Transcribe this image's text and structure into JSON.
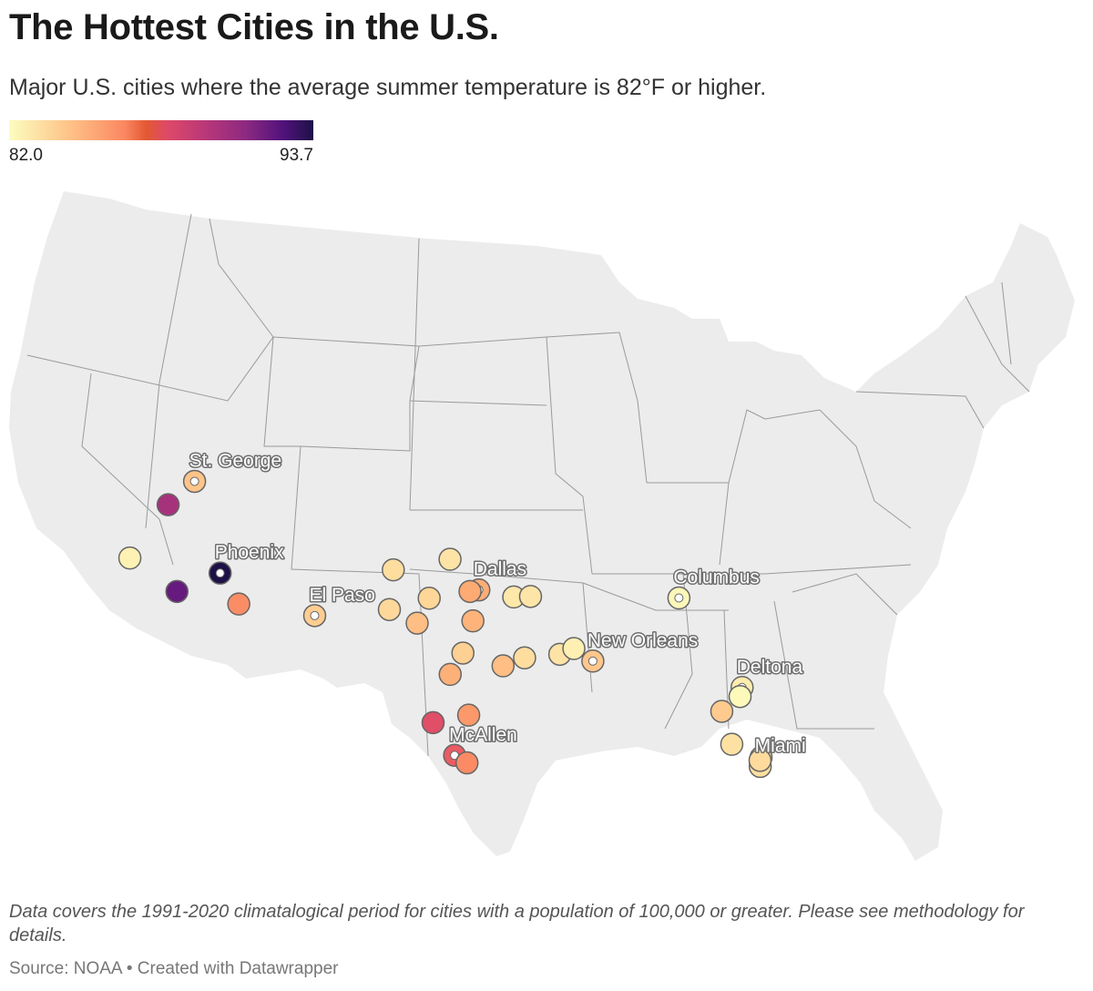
{
  "title": "The Hottest Cities in the U.S.",
  "subtitle": "Major U.S. cities where the average summer temperature is 82°F or higher.",
  "legend": {
    "min_label": "82.0",
    "max_label": "93.7",
    "min": 82.0,
    "max": 93.7
  },
  "note": "Data covers the 1991-2020 climatalogical period for cities with a population of 100,000 or greater. Please see methodology for details.",
  "source": "Source: NOAA • Created with Datawrapper",
  "colors": {
    "land": "#ececec",
    "border": "#9a9a9a",
    "marker_stroke": "#666666"
  },
  "cities": [
    {
      "label": "St. George",
      "lat": 37.1,
      "lon": -113.58,
      "temp": 84.4,
      "highlight": true
    },
    {
      "label": "Phoenix",
      "lat": 33.45,
      "lon": -112.07,
      "temp": 93.7,
      "highlight": true
    },
    {
      "label": "El Paso",
      "lat": 31.76,
      "lon": -106.49,
      "temp": 84.1,
      "highlight": true
    },
    {
      "label": "Dallas",
      "lat": 32.78,
      "lon": -96.8,
      "temp": 85.2,
      "highlight": true
    },
    {
      "label": "Columbus",
      "lat": 32.46,
      "lon": -84.99,
      "temp": 82.3,
      "highlight": true
    },
    {
      "label": "New Orleans",
      "lat": 29.95,
      "lon": -90.07,
      "temp": 84.3,
      "highlight": true
    },
    {
      "label": "Deltona",
      "lat": 28.9,
      "lon": -81.26,
      "temp": 82.8,
      "highlight": true
    },
    {
      "label": "Miami",
      "lat": 25.76,
      "lon": -80.19,
      "temp": 83.4,
      "highlight": true
    },
    {
      "label": "McAllen",
      "lat": 26.2,
      "lon": -98.23,
      "temp": 87.9,
      "highlight": true
    },
    {
      "label": "",
      "lat": 34.05,
      "lon": -117.4,
      "temp": 82.5,
      "highlight": false
    },
    {
      "label": "",
      "lat": 36.17,
      "lon": -115.14,
      "temp": 90.5,
      "highlight": false
    },
    {
      "label": "",
      "lat": 32.72,
      "lon": -114.62,
      "temp": 92.1,
      "highlight": false
    },
    {
      "label": "",
      "lat": 32.22,
      "lon": -110.97,
      "temp": 86.3,
      "highlight": false
    },
    {
      "label": "",
      "lat": 33.58,
      "lon": -101.85,
      "temp": 83.5,
      "highlight": false
    },
    {
      "label": "",
      "lat": 32.0,
      "lon": -102.08,
      "temp": 83.7,
      "highlight": false
    },
    {
      "label": "",
      "lat": 31.46,
      "lon": -100.44,
      "temp": 84.6,
      "highlight": false
    },
    {
      "label": "",
      "lat": 32.45,
      "lon": -99.73,
      "temp": 83.8,
      "highlight": false
    },
    {
      "label": "",
      "lat": 34.0,
      "lon": -98.5,
      "temp": 83.2,
      "highlight": false
    },
    {
      "label": "",
      "lat": 32.72,
      "lon": -97.32,
      "temp": 85.3,
      "highlight": false
    },
    {
      "label": "",
      "lat": 31.55,
      "lon": -97.15,
      "temp": 85.0,
      "highlight": false
    },
    {
      "label": "",
      "lat": 30.27,
      "lon": -97.74,
      "temp": 84.0,
      "highlight": false
    },
    {
      "label": "",
      "lat": 29.42,
      "lon": -98.49,
      "temp": 85.1,
      "highlight": false
    },
    {
      "label": "",
      "lat": 27.8,
      "lon": -97.4,
      "temp": 85.9,
      "highlight": false
    },
    {
      "label": "",
      "lat": 27.5,
      "lon": -99.5,
      "temp": 88.3,
      "highlight": false
    },
    {
      "label": "",
      "lat": 25.9,
      "lon": -97.5,
      "temp": 86.4,
      "highlight": false
    },
    {
      "label": "",
      "lat": 32.5,
      "lon": -94.74,
      "temp": 83.0,
      "highlight": false
    },
    {
      "label": "",
      "lat": 32.52,
      "lon": -93.75,
      "temp": 83.1,
      "highlight": false
    },
    {
      "label": "",
      "lat": 29.76,
      "lon": -95.37,
      "temp": 84.6,
      "highlight": false
    },
    {
      "label": "",
      "lat": 30.08,
      "lon": -94.1,
      "temp": 83.5,
      "highlight": false
    },
    {
      "label": "",
      "lat": 30.22,
      "lon": -92.02,
      "temp": 83.2,
      "highlight": false
    },
    {
      "label": "",
      "lat": 30.45,
      "lon": -91.19,
      "temp": 82.6,
      "highlight": false
    },
    {
      "label": "",
      "lat": 28.54,
      "lon": -81.38,
      "temp": 82.2,
      "highlight": false
    },
    {
      "label": "",
      "lat": 27.95,
      "lon": -82.46,
      "temp": 84.2,
      "highlight": false
    },
    {
      "label": "",
      "lat": 26.64,
      "lon": -81.87,
      "temp": 83.3,
      "highlight": false
    },
    {
      "label": "",
      "lat": 26.12,
      "lon": -80.14,
      "temp": 83.5,
      "highlight": false
    },
    {
      "label": "",
      "lat": 26.0,
      "lon": -80.2,
      "temp": 83.6,
      "highlight": false
    }
  ]
}
